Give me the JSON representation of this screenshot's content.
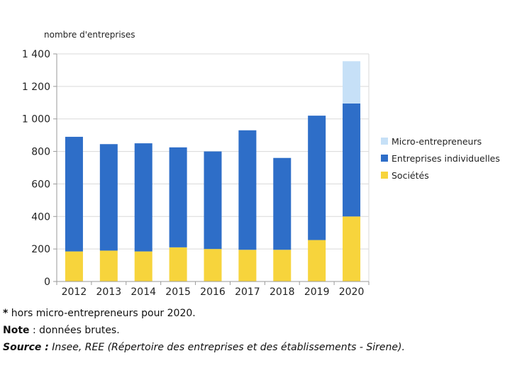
{
  "chart_data": {
    "type": "bar",
    "stacked": true,
    "ylabel": "nombre d'entreprises",
    "xlabel": "",
    "ylim": [
      0,
      1400
    ],
    "yticks": [
      0,
      200,
      400,
      600,
      800,
      1000,
      1200,
      1400
    ],
    "ytick_labels": [
      "0",
      "200",
      "400",
      "600",
      "800",
      "1 000",
      "1 200",
      "1 400"
    ],
    "grid": true,
    "legend_position": "right",
    "categories": [
      "2012",
      "2013",
      "2014",
      "2015",
      "2016",
      "2017",
      "2018",
      "2019",
      "2020"
    ],
    "series": [
      {
        "name": "Sociétés",
        "color": "#f7d43c",
        "values": [
          185,
          190,
          185,
          210,
          200,
          195,
          195,
          255,
          400
        ]
      },
      {
        "name": "Entreprises individuelles",
        "color": "#2e6ec8",
        "values": [
          705,
          655,
          665,
          615,
          600,
          735,
          565,
          765,
          695
        ]
      },
      {
        "name": "Micro-entrepreneurs",
        "color": "#c6e0f7",
        "values": [
          0,
          0,
          0,
          0,
          0,
          0,
          0,
          0,
          260
        ]
      }
    ],
    "legend_order": [
      "Micro-entrepreneurs",
      "Entreprises individuelles",
      "Sociétés"
    ]
  },
  "notes": {
    "star": "*",
    "star_text": " hors micro-entrepreneurs pour 2020.",
    "note_label": "Note",
    "note_text": " : données brutes.",
    "source_label": "Source :",
    "source_text": "  Insee, REE (Répertoire des entreprises et des établissements - Sirene)."
  }
}
